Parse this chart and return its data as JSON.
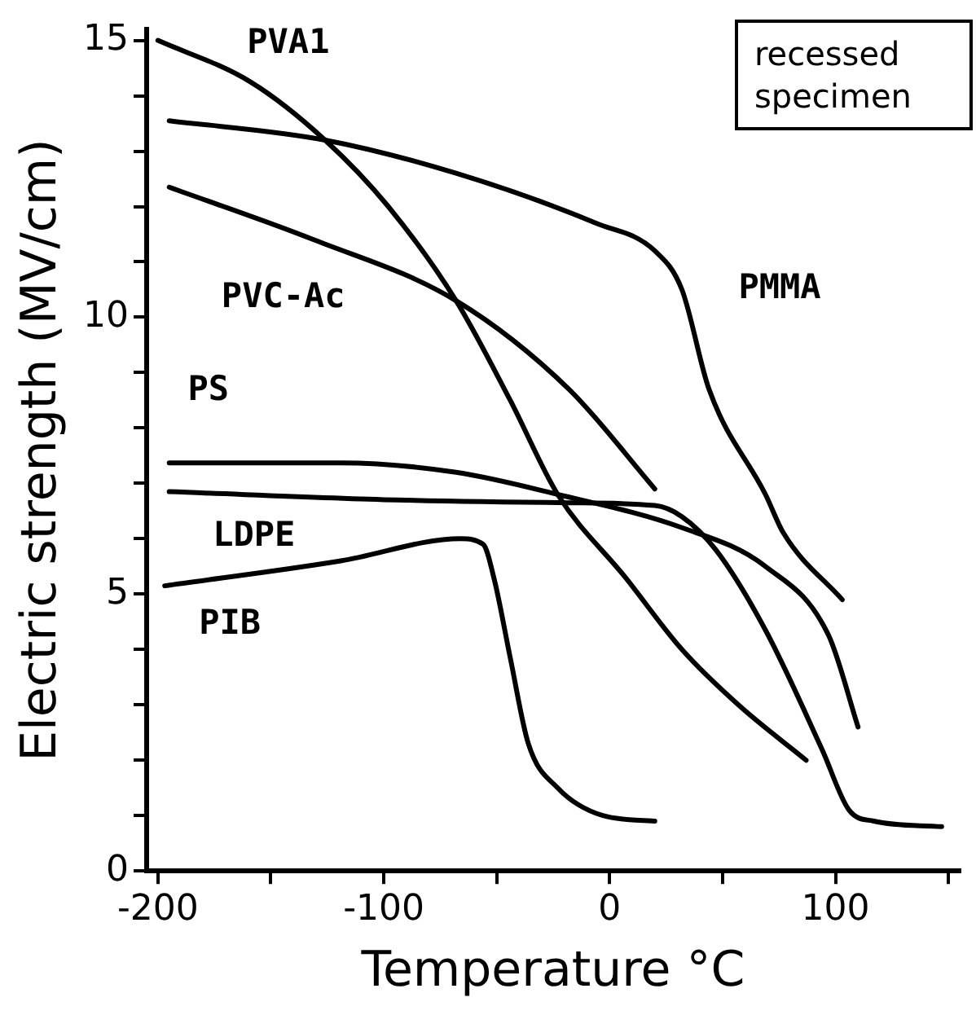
{
  "chart_data": {
    "type": "line",
    "xlabel": "Temperature °C",
    "ylabel": "Electric strength (MV/cm)",
    "xlim": [
      -205,
      155
    ],
    "ylim": [
      0,
      15.2
    ],
    "xticks": [
      -200,
      {
        "value": -150,
        "label": null
      },
      -100,
      {
        "value": -50,
        "label": null
      },
      0,
      {
        "value": 50,
        "label": null
      },
      100,
      {
        "value": 150,
        "label": null
      }
    ],
    "yticks": [
      0,
      {
        "value": 1,
        "label": null
      },
      {
        "value": 2,
        "label": null
      },
      {
        "value": 3,
        "label": null
      },
      {
        "value": 4,
        "label": null
      },
      5,
      {
        "value": 6,
        "label": null
      },
      {
        "value": 7,
        "label": null
      },
      {
        "value": 8,
        "label": null
      },
      {
        "value": 9,
        "label": null
      },
      10,
      {
        "value": 11,
        "label": null
      },
      {
        "value": 12,
        "label": null
      },
      {
        "value": 13,
        "label": null
      },
      {
        "value": 14,
        "label": null
      },
      15
    ],
    "marker": "none",
    "line_style": "solid",
    "series": [
      {
        "name": "PVA1",
        "color": "#000000",
        "x": [
          -200,
          -159,
          -126,
          -98,
          -68,
          -44,
          -23,
          7,
          32,
          57,
          87
        ],
        "values": [
          15.0,
          14.25,
          13.2,
          12.0,
          10.3,
          8.5,
          6.8,
          5.3,
          4.0,
          3.0,
          2.0
        ]
      },
      {
        "name": "PMMA",
        "color": "#000000",
        "x": [
          -195,
          -126,
          -68,
          -6,
          20,
          32,
          44,
          69,
          77,
          103
        ],
        "values": [
          13.55,
          13.2,
          12.6,
          11.7,
          11.2,
          10.5,
          8.7,
          6.8,
          6.1,
          4.9
        ]
      },
      {
        "name": "PVC-Ac",
        "color": "#000000",
        "x": [
          -195,
          -131,
          -68,
          -18,
          20
        ],
        "values": [
          12.35,
          11.4,
          10.3,
          8.7,
          6.9
        ]
      },
      {
        "name": "PS",
        "color": "#000000",
        "x": [
          -195,
          -119,
          -68,
          -23,
          32,
          69,
          97,
          110
        ],
        "values": [
          7.37,
          7.37,
          7.2,
          6.8,
          6.2,
          5.5,
          4.25,
          2.6
        ]
      },
      {
        "name": "LDPE",
        "color": "#000000",
        "x": [
          -195,
          -94,
          -18,
          20,
          32,
          47,
          69,
          94,
          106,
          117,
          147
        ],
        "values": [
          6.85,
          6.7,
          6.65,
          6.6,
          6.4,
          5.8,
          4.35,
          2.2,
          1.1,
          0.9,
          0.8
        ]
      },
      {
        "name": "PIB",
        "color": "#000000",
        "x": [
          -197,
          -119,
          -66,
          -56,
          -51,
          -44,
          -36,
          -23,
          -3,
          20
        ],
        "values": [
          5.15,
          5.6,
          6.0,
          5.9,
          5.25,
          3.85,
          2.3,
          1.5,
          1.0,
          0.9
        ]
      }
    ],
    "annotations": [
      "recessed specimen"
    ]
  }
}
